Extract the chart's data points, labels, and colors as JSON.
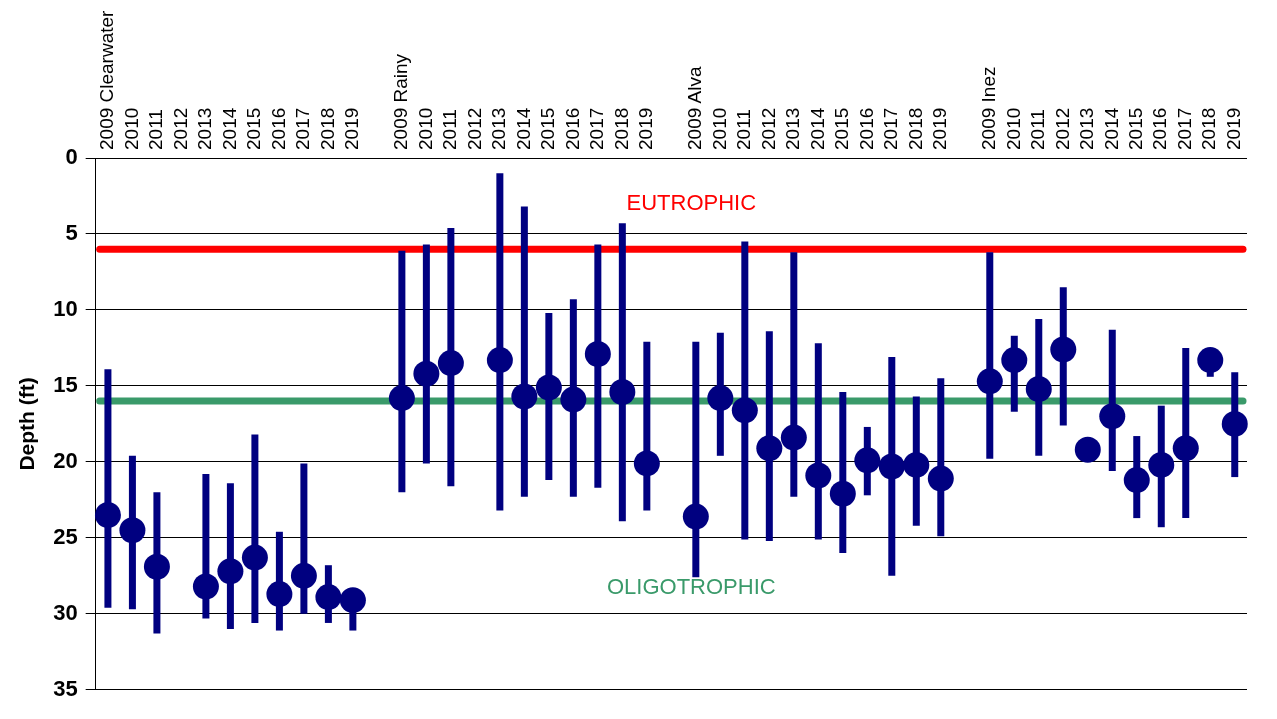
{
  "chart_data": {
    "type": "scatter",
    "ylabel": "Depth (ft)",
    "categories": [
      "2009 Clearwater",
      "2010",
      "2011",
      "2012",
      "2013",
      "2014",
      "2015",
      "2016",
      "2017",
      "2018",
      "2019",
      null,
      "2009 Rainy",
      "2010",
      "2011",
      "2012",
      "2013",
      "2014",
      "2015",
      "2016",
      "2017",
      "2018",
      "2019",
      null,
      "2009 Alva",
      "2010",
      "2011",
      "2012",
      "2013",
      "2014",
      "2015",
      "2016",
      "2017",
      "2018",
      "2019",
      null,
      "2009 Inez",
      "2010",
      "2011",
      "2012",
      "2013",
      "2014",
      "2015",
      "2016",
      "2017",
      "2018",
      "2019"
    ],
    "series": [
      {
        "color": "#000080",
        "values": [
          23.5,
          24.5,
          26.9,
          null,
          28.2,
          27.2,
          26.3,
          28.7,
          27.5,
          28.9,
          29.1,
          null,
          15.8,
          14.2,
          13.5,
          null,
          13.3,
          15.7,
          15.1,
          15.9,
          12.9,
          15.4,
          20.1,
          null,
          23.6,
          15.8,
          16.6,
          19.1,
          18.4,
          20.9,
          22.1,
          19.9,
          20.3,
          20.2,
          21.1,
          null,
          14.7,
          13.3,
          15.2,
          12.6,
          19.2,
          17.0,
          21.2,
          20.2,
          19.1,
          13.3,
          17.5
        ],
        "errors": [
          [
            13.9,
            29.6
          ],
          [
            19.6,
            29.7
          ],
          [
            22.0,
            31.3
          ],
          null,
          [
            20.8,
            30.3
          ],
          [
            21.4,
            31.0
          ],
          [
            18.2,
            30.6
          ],
          [
            24.6,
            31.1
          ],
          [
            20.1,
            30.0
          ],
          [
            26.8,
            30.6
          ],
          [
            29.1,
            31.1
          ],
          null,
          [
            6.1,
            22.0
          ],
          [
            5.7,
            20.1
          ],
          [
            4.6,
            21.6
          ],
          null,
          [
            1.0,
            23.2
          ],
          [
            3.2,
            22.3
          ],
          [
            10.2,
            21.2
          ],
          [
            9.3,
            22.3
          ],
          [
            5.7,
            21.7
          ],
          [
            4.3,
            23.9
          ],
          [
            12.1,
            23.2
          ],
          null,
          [
            12.1,
            27.6
          ],
          [
            11.5,
            19.6
          ],
          [
            5.5,
            25.1
          ],
          [
            11.4,
            25.2
          ],
          [
            6.2,
            22.3
          ],
          [
            12.2,
            25.1
          ],
          [
            15.4,
            26.0
          ],
          [
            17.7,
            22.2
          ],
          [
            13.1,
            27.5
          ],
          [
            15.7,
            24.2
          ],
          [
            14.5,
            24.9
          ],
          null,
          [
            6.2,
            19.8
          ],
          [
            11.7,
            16.7
          ],
          [
            10.6,
            19.6
          ],
          [
            8.5,
            17.6
          ],
          null,
          [
            11.3,
            20.6
          ],
          [
            18.3,
            23.7
          ],
          [
            16.3,
            24.3
          ],
          [
            12.5,
            23.7
          ],
          [
            13.3,
            14.4
          ],
          [
            14.1,
            21.0
          ]
        ]
      }
    ],
    "ylim": [
      35,
      0
    ],
    "yticks": [
      0,
      5,
      10,
      15,
      20,
      25,
      30,
      35
    ],
    "grid": "y",
    "legend": false,
    "marker": "circle",
    "ref_lines": [
      {
        "axis": "y",
        "value": 6,
        "label": "EUTROPHIC",
        "color": "#ff0000"
      },
      {
        "axis": "y",
        "value": 16,
        "label": "OLIGOTROPHIC",
        "color": "#3a9a6a"
      }
    ]
  }
}
